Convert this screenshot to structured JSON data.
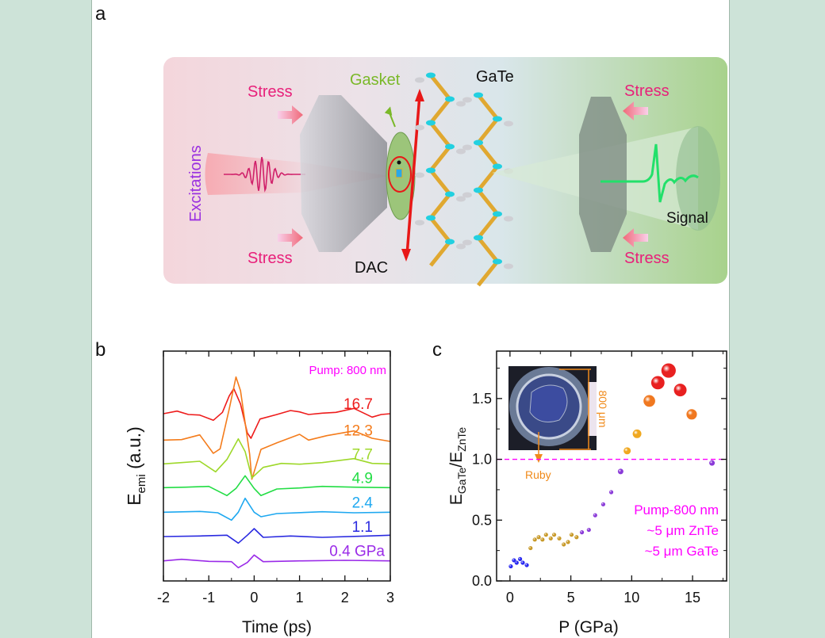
{
  "panel_a": {
    "letter": "a",
    "labels": {
      "stress_tl": "Stress",
      "stress_bl": "Stress",
      "stress_tr": "Stress",
      "stress_br": "Stress",
      "gasket": "Gasket",
      "gate": "GaTe",
      "dac": "DAC",
      "excitations": "Excitations",
      "signal": "Signal"
    },
    "colors": {
      "stress": "#e8207a",
      "gasket": "#7ab828",
      "excitations": "#9a30e0",
      "arrow": "#e81818"
    }
  },
  "chart_data": [
    {
      "panel": "b",
      "type": "line",
      "xlabel": "Time (ps)",
      "ylabel_main": "E",
      "ylabel_sub": "emi",
      "ylabel_unit": " (a.u.)",
      "xlim": [
        -2,
        3
      ],
      "ylim": [
        0,
        8.7
      ],
      "xticks": [
        "-2",
        "-1",
        "0",
        "1",
        "2",
        "3"
      ],
      "xtick_values": [
        -2,
        -1,
        0,
        1,
        2,
        3
      ],
      "annotation": "Pump: 800 nm",
      "annotation_color": "#ff00ff",
      "series": [
        {
          "name": "16.7",
          "color": "#ee1c1c",
          "points": [
            [
              -2,
              6.33
            ],
            [
              -1.7,
              6.43
            ],
            [
              -1.45,
              6.3
            ],
            [
              -1.2,
              6.28
            ],
            [
              -0.9,
              6.08
            ],
            [
              -0.7,
              6.38
            ],
            [
              -0.55,
              7.0
            ],
            [
              -0.45,
              7.28
            ],
            [
              -0.3,
              6.7
            ],
            [
              -0.15,
              5.6
            ],
            [
              -0.07,
              5.4
            ],
            [
              0.13,
              6.13
            ],
            [
              0.5,
              6.3
            ],
            [
              0.8,
              6.45
            ],
            [
              1.0,
              6.4
            ],
            [
              1.2,
              6.3
            ],
            [
              1.5,
              6.35
            ],
            [
              1.8,
              6.38
            ],
            [
              2.2,
              6.53
            ],
            [
              2.6,
              6.2
            ],
            [
              2.8,
              6.3
            ],
            [
              3,
              6.33
            ]
          ]
        },
        {
          "name": "12.3",
          "color": "#f47c1c",
          "points": [
            [
              -2,
              5.33
            ],
            [
              -1.6,
              5.35
            ],
            [
              -1.2,
              5.53
            ],
            [
              -0.9,
              4.83
            ],
            [
              -0.75,
              5.0
            ],
            [
              -0.55,
              6.5
            ],
            [
              -0.4,
              7.72
            ],
            [
              -0.3,
              7.2
            ],
            [
              -0.1,
              4.8
            ],
            [
              -0.05,
              3.85
            ],
            [
              0.15,
              4.98
            ],
            [
              0.5,
              5.23
            ],
            [
              1.0,
              5.55
            ],
            [
              1.2,
              5.33
            ],
            [
              1.6,
              5.5
            ],
            [
              2.2,
              5.68
            ],
            [
              2.6,
              5.4
            ],
            [
              3,
              5.28
            ]
          ]
        },
        {
          "name": "7.7",
          "color": "#9ed82a",
          "points": [
            [
              -2,
              4.43
            ],
            [
              -1.6,
              4.48
            ],
            [
              -1.2,
              4.53
            ],
            [
              -0.85,
              4.13
            ],
            [
              -0.6,
              4.6
            ],
            [
              -0.35,
              5.38
            ],
            [
              -0.2,
              4.9
            ],
            [
              -0.05,
              3.9
            ],
            [
              0.2,
              4.3
            ],
            [
              0.6,
              4.45
            ],
            [
              1.0,
              4.42
            ],
            [
              1.5,
              4.48
            ],
            [
              2.2,
              4.63
            ],
            [
              2.6,
              4.45
            ],
            [
              3,
              4.43
            ]
          ]
        },
        {
          "name": "4.9",
          "color": "#22dd44",
          "points": [
            [
              -2,
              3.53
            ],
            [
              -1.5,
              3.55
            ],
            [
              -1,
              3.58
            ],
            [
              -0.6,
              3.23
            ],
            [
              -0.4,
              3.5
            ],
            [
              -0.2,
              3.98
            ],
            [
              0.0,
              3.5
            ],
            [
              0.15,
              3.23
            ],
            [
              0.5,
              3.48
            ],
            [
              1.0,
              3.52
            ],
            [
              1.5,
              3.58
            ],
            [
              2.2,
              3.55
            ],
            [
              3,
              3.53
            ]
          ]
        },
        {
          "name": "2.4",
          "color": "#1ea8f0",
          "points": [
            [
              -2,
              2.6
            ],
            [
              -1.2,
              2.63
            ],
            [
              -0.8,
              2.58
            ],
            [
              -0.5,
              2.3
            ],
            [
              -0.35,
              2.6
            ],
            [
              -0.2,
              3.13
            ],
            [
              0.0,
              2.6
            ],
            [
              0.15,
              2.43
            ],
            [
              0.5,
              2.55
            ],
            [
              1.5,
              2.62
            ],
            [
              2.2,
              2.58
            ],
            [
              3,
              2.6
            ]
          ]
        },
        {
          "name": "1.1",
          "color": "#2a2ae0",
          "points": [
            [
              -2,
              1.68
            ],
            [
              -1.2,
              1.7
            ],
            [
              -0.6,
              1.73
            ],
            [
              -0.35,
              1.43
            ],
            [
              -0.15,
              1.73
            ],
            [
              0.0,
              1.98
            ],
            [
              0.2,
              1.65
            ],
            [
              0.8,
              1.7
            ],
            [
              1.5,
              1.65
            ],
            [
              2.5,
              1.7
            ],
            [
              3,
              1.73
            ]
          ]
        },
        {
          "name": "0.4 GPa",
          "color": "#9a2ae8",
          "points": [
            [
              -2,
              0.76
            ],
            [
              -1.6,
              0.82
            ],
            [
              -1.0,
              0.74
            ],
            [
              -0.5,
              0.73
            ],
            [
              -0.35,
              0.5
            ],
            [
              -0.15,
              0.7
            ],
            [
              0.0,
              0.98
            ],
            [
              0.2,
              0.73
            ],
            [
              1.0,
              0.76
            ],
            [
              2.0,
              0.78
            ],
            [
              3,
              0.76
            ]
          ]
        }
      ]
    },
    {
      "panel": "c",
      "type": "scatter",
      "xlabel": "P (GPa)",
      "ylabel_main": "E",
      "ylabel_sub1": "GaTe",
      "ylabel_mid": "/E",
      "ylabel_sub2": "ZnTe",
      "xlim": [
        -1.1,
        17.8
      ],
      "ylim": [
        0,
        1.89
      ],
      "xticks": [
        "0",
        "5",
        "10",
        "15"
      ],
      "xtick_values": [
        0,
        5,
        10,
        15
      ],
      "yticks": [
        "0.0",
        "0.5",
        "1.0",
        "1.5"
      ],
      "ytick_values": [
        0,
        0.5,
        1.0,
        1.5
      ],
      "reference_line": 1.0,
      "reference_color": "#ff00ff",
      "annotations": [
        "Pump-800 nm",
        "~5 μm ZnTe",
        "~5 μm GaTe"
      ],
      "annotation_color": "#ff00ff",
      "inset": {
        "scale_label": "800 μm",
        "arrow_label": "Ruby",
        "color": "#f08a1a"
      },
      "points": [
        {
          "x": 0.07,
          "y": 0.12,
          "color": "#2a2af0"
        },
        {
          "x": 0.33,
          "y": 0.17,
          "color": "#2a2af0"
        },
        {
          "x": 0.55,
          "y": 0.15,
          "color": "#2a2af0"
        },
        {
          "x": 0.83,
          "y": 0.18,
          "color": "#2a2af0"
        },
        {
          "x": 1.05,
          "y": 0.15,
          "color": "#2a2af0"
        },
        {
          "x": 1.38,
          "y": 0.13,
          "color": "#2a2af0"
        },
        {
          "x": 1.69,
          "y": 0.27,
          "color": "#c89a2a"
        },
        {
          "x": 2.04,
          "y": 0.34,
          "color": "#c89a2a"
        },
        {
          "x": 2.36,
          "y": 0.36,
          "color": "#c89a2a"
        },
        {
          "x": 2.67,
          "y": 0.34,
          "color": "#c89a2a"
        },
        {
          "x": 2.96,
          "y": 0.38,
          "color": "#c89a2a"
        },
        {
          "x": 3.35,
          "y": 0.35,
          "color": "#c89a2a"
        },
        {
          "x": 3.63,
          "y": 0.38,
          "color": "#c89a2a"
        },
        {
          "x": 4.05,
          "y": 0.35,
          "color": "#c89a2a"
        },
        {
          "x": 4.42,
          "y": 0.3,
          "color": "#c89a2a"
        },
        {
          "x": 4.77,
          "y": 0.32,
          "color": "#c89a2a"
        },
        {
          "x": 5.06,
          "y": 0.38,
          "color": "#c89a2a"
        },
        {
          "x": 5.47,
          "y": 0.36,
          "color": "#c89a2a"
        },
        {
          "x": 5.91,
          "y": 0.4,
          "color": "#8a3ad8"
        },
        {
          "x": 6.48,
          "y": 0.42,
          "color": "#8a3ad8"
        },
        {
          "x": 7.0,
          "y": 0.54,
          "color": "#8a3ad8"
        },
        {
          "x": 7.66,
          "y": 0.63,
          "color": "#8a3ad8"
        },
        {
          "x": 8.32,
          "y": 0.73,
          "color": "#8a3ad8"
        },
        {
          "x": 9.09,
          "y": 0.9,
          "color": "#8a3ad8"
        },
        {
          "x": 16.6,
          "y": 0.97,
          "color": "#8a3ad8"
        },
        {
          "x": 9.63,
          "y": 1.07,
          "color": "#f0a820"
        },
        {
          "x": 10.44,
          "y": 1.21,
          "color": "#f0a820"
        },
        {
          "x": 11.45,
          "y": 1.48,
          "color": "#f07820"
        },
        {
          "x": 12.15,
          "y": 1.63,
          "color": "#e82020"
        },
        {
          "x": 13.03,
          "y": 1.73,
          "color": "#e82020"
        },
        {
          "x": 13.99,
          "y": 1.57,
          "color": "#e82020"
        },
        {
          "x": 14.93,
          "y": 1.37,
          "color": "#f07820"
        }
      ]
    }
  ],
  "panel_b_letter": "b",
  "panel_c_letter": "c"
}
